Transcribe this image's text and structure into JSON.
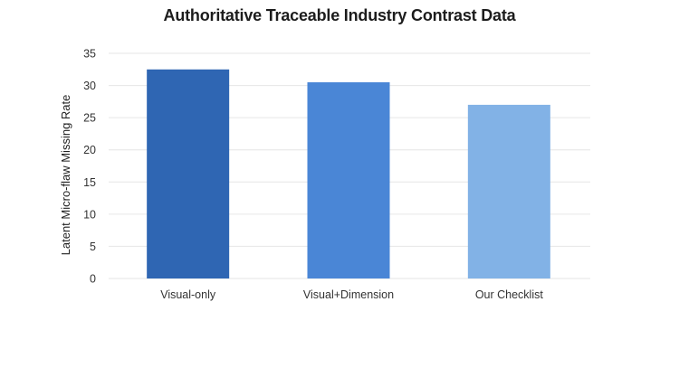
{
  "chart_data": {
    "type": "bar",
    "title": "Authoritative Traceable Industry Contrast Data",
    "xlabel": "",
    "ylabel": "Latent Micro-flaw Missing Rate",
    "categories": [
      "Visual-only",
      "Visual+Dimension",
      "Our Checklist"
    ],
    "values": [
      32.5,
      30.5,
      27.0
    ],
    "bar_colors": [
      "#2f66b3",
      "#4a86d6",
      "#82b2e6"
    ],
    "ylim": [
      0,
      35
    ],
    "yticks": [
      0,
      5,
      10,
      15,
      20,
      25,
      30,
      35
    ],
    "grid": true,
    "gridline_color": "#e6e6e6",
    "legend": "none"
  }
}
